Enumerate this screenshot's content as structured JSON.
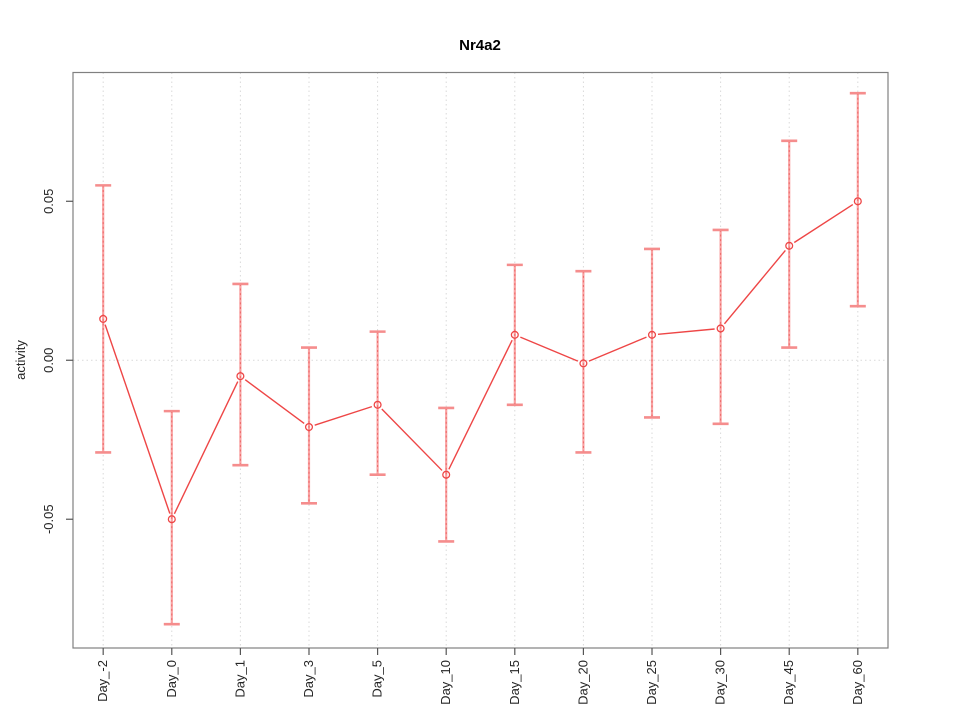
{
  "window": {
    "background": "#ffffff"
  },
  "chart_data": {
    "type": "line",
    "title": "Nr4a2",
    "xlabel": "",
    "ylabel": "activity",
    "legend_position": "none",
    "grid": {
      "vertical": "dotted line at every category",
      "horizontal": "dotted line at y = 0 only"
    },
    "categories": [
      "Day_-2",
      "Day_0",
      "Day_1",
      "Day_3",
      "Day_5",
      "Day_10",
      "Day_15",
      "Day_20",
      "Day_25",
      "Day_30",
      "Day_45",
      "Day_60"
    ],
    "series": [
      {
        "name": "activity",
        "marker": "open-circle",
        "line_type": "segments-with-gaps-at-points",
        "values": [
          0.013,
          -0.05,
          -0.005,
          -0.021,
          -0.014,
          -0.036,
          0.008,
          -0.001,
          0.008,
          0.01,
          0.036,
          0.05
        ],
        "upper": [
          0.055,
          -0.016,
          0.024,
          0.004,
          0.009,
          -0.015,
          0.03,
          0.028,
          0.035,
          0.041,
          0.069,
          0.084
        ],
        "lower": [
          -0.029,
          -0.083,
          -0.033,
          -0.045,
          -0.036,
          -0.057,
          -0.014,
          -0.029,
          -0.018,
          -0.02,
          0.004,
          0.017
        ]
      }
    ],
    "ylim": [
      -0.0905,
      0.0905
    ],
    "yticks": [
      -0.05,
      0,
      0.05
    ],
    "ytick_labels": [
      "-0.05",
      "0.00",
      "0.05"
    ],
    "colors": {
      "line": "#ee4646",
      "point": "#ee4646",
      "error_bar_solid": "#f9a2a2",
      "error_bar_dash": "#e85555",
      "error_cap": "#f58d8d",
      "grid": "#d9d9d9",
      "box": "#808080",
      "tick": "#555555",
      "text": "#262626"
    }
  }
}
